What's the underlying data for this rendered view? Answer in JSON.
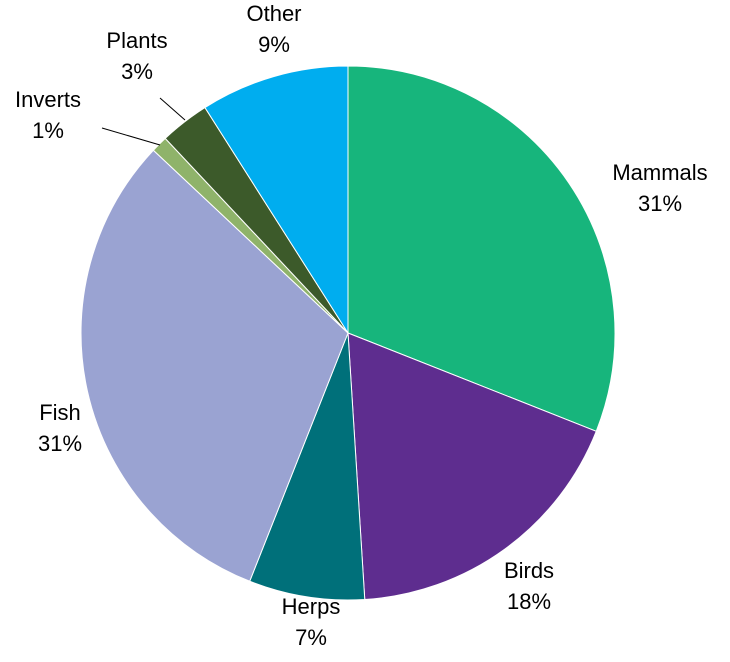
{
  "chart_data": {
    "type": "pie",
    "title": "",
    "start": "12 o'clock",
    "direction": "clockwise",
    "legend": "none",
    "slices": [
      {
        "label": "Mammals",
        "value": 31,
        "value_label": "31%",
        "color": "#17b57c"
      },
      {
        "label": "Birds",
        "value": 18,
        "value_label": "18%",
        "color": "#5e2d8f"
      },
      {
        "label": "Herps",
        "value": 7,
        "value_label": "7%",
        "color": "#00707a"
      },
      {
        "label": "Fish",
        "value": 31,
        "value_label": "31%",
        "color": "#9aa3d2"
      },
      {
        "label": "Inverts",
        "value": 1,
        "value_label": "1%",
        "color": "#8fb36a"
      },
      {
        "label": "Plants",
        "value": 3,
        "value_label": "3%",
        "color": "#3c5a2a"
      },
      {
        "label": "Other",
        "value": 9,
        "value_label": "9%",
        "color": "#00adef"
      }
    ]
  }
}
